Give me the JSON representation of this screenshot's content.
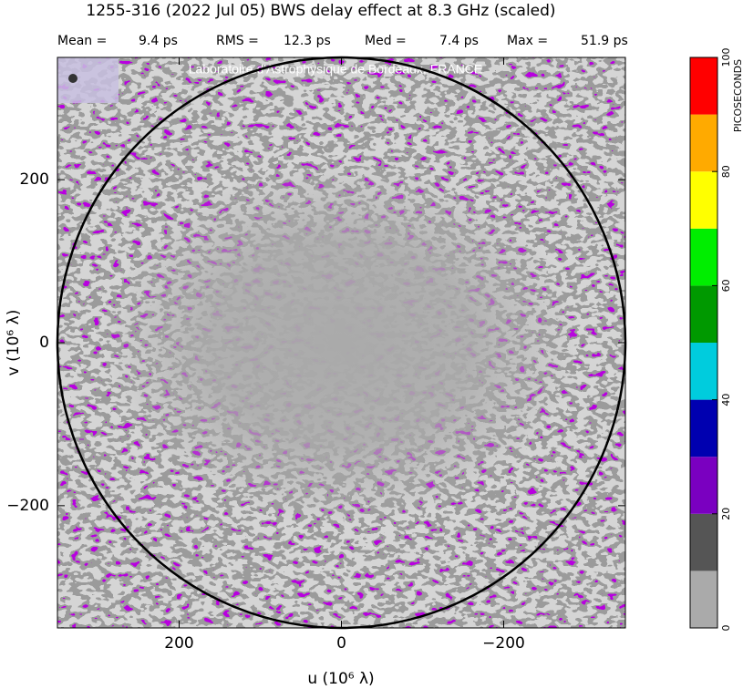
{
  "chart_data": {
    "type": "heatmap",
    "title": "1255-316  (2022 Jul 05)   BWS delay effect at  8.3 GHz (scaled)",
    "stats": [
      {
        "name": "Mean =",
        "value": 9.4,
        "label": "9.4 ps"
      },
      {
        "name": "RMS =",
        "value": 12.3,
        "label": "12.3 ps"
      },
      {
        "name": "Med =",
        "value": 7.4,
        "label": "7.4 ps"
      },
      {
        "name": "Max =",
        "value": 51.9,
        "label": "51.9 ps"
      }
    ],
    "watermark": "Laboratoire d'Astrophysique de Bordeaux, FRANCE",
    "xlabel": "u  (10⁶ λ)",
    "ylabel": "v  (10⁶ λ)",
    "xlim": [
      350,
      -350
    ],
    "xticks": [
      200,
      0,
      {
        "value": -200,
        "label": "−200"
      }
    ],
    "ylim": [
      -350,
      350
    ],
    "yticks": [
      {
        "value": -200,
        "label": "−200"
      },
      0,
      200
    ],
    "circle_radius": 350,
    "colorbar": {
      "label": "PICOSECONDS",
      "lim": [
        0,
        100
      ],
      "ticks": [
        0,
        20,
        40,
        60,
        80,
        100
      ],
      "levels": [
        0,
        10,
        20,
        30,
        40,
        50,
        60,
        70,
        80,
        90,
        100
      ],
      "colors": [
        "#aaaaaa",
        "#555555",
        "#7a00c0",
        "#0000b0",
        "#00ccdd",
        "#009900",
        "#00ee00",
        "#ffff00",
        "#ffaa00",
        "#ff0000"
      ]
    }
  }
}
